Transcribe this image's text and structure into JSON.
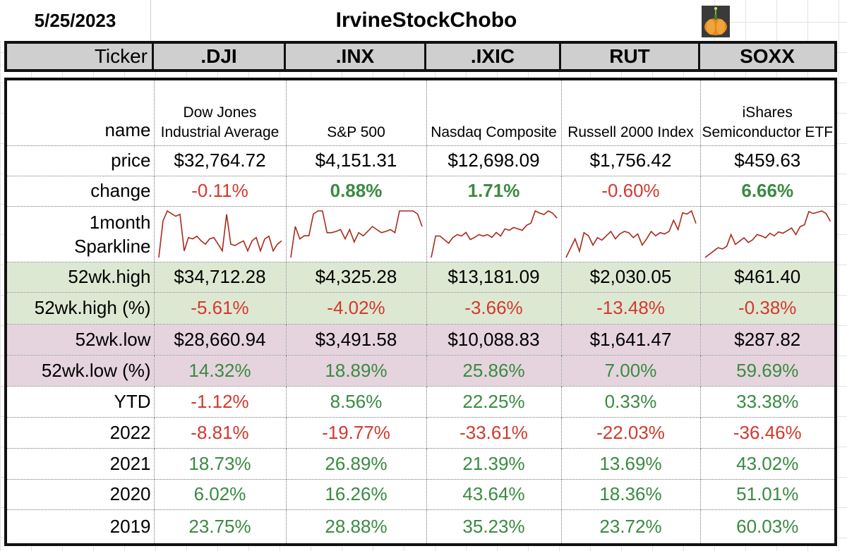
{
  "date": "5/25/2023",
  "title": "IrvineStockChobo",
  "header": {
    "ticker_label": "Ticker",
    "tickers": [
      ".DJI",
      ".INX",
      ".IXIC",
      "RUT",
      "SOXX"
    ]
  },
  "rows": {
    "name": {
      "label": "name",
      "values": [
        "Dow Jones Industrial Average",
        "S&P 500",
        "Nasdaq Composite",
        "Russell 2000 Index",
        "iShares Semiconductor ETF"
      ]
    },
    "price": {
      "label": "price",
      "values": [
        "$32,764.72",
        "$4,151.31",
        "$12,698.09",
        "$1,756.42",
        "$459.63"
      ]
    },
    "change": {
      "label": "change",
      "values": [
        "-0.11%",
        "0.88%",
        "1.71%",
        "-0.60%",
        "6.66%"
      ]
    },
    "sparkline": {
      "label_line1": "1month",
      "label_line2": "Sparkline",
      "series": [
        [
          30,
          85,
          100,
          96,
          92,
          95,
          40,
          60,
          58,
          62,
          55,
          50,
          58,
          60,
          50,
          40,
          95,
          50,
          48,
          52,
          55,
          40,
          55,
          60,
          40,
          58,
          62,
          40,
          50,
          55
        ],
        [
          20,
          70,
          50,
          55,
          55,
          90,
          95,
          95,
          60,
          60,
          62,
          65,
          50,
          65,
          45,
          60,
          55,
          62,
          70,
          65,
          60,
          62,
          65,
          60,
          95,
          95,
          95,
          95,
          90,
          70
        ],
        [
          30,
          60,
          60,
          55,
          50,
          58,
          62,
          60,
          65,
          55,
          58,
          62,
          60,
          62,
          58,
          65,
          60,
          70,
          68,
          72,
          70,
          68,
          75,
          78,
          95,
          92,
          90,
          95,
          92,
          85
        ],
        [
          20,
          35,
          50,
          30,
          60,
          55,
          40,
          52,
          48,
          55,
          62,
          50,
          58,
          62,
          60,
          52,
          58,
          40,
          50,
          62,
          55,
          60,
          58,
          62,
          80,
          65,
          92,
          90,
          95,
          75
        ],
        [
          25,
          30,
          35,
          40,
          38,
          42,
          60,
          45,
          50,
          55,
          48,
          52,
          60,
          58,
          55,
          62,
          58,
          64,
          62,
          66,
          70,
          60,
          72,
          75,
          95,
          92,
          94,
          96,
          92,
          80
        ]
      ],
      "color": "#a8291c"
    },
    "high52": {
      "label": "52wk.high",
      "values": [
        "$34,712.28",
        "$4,325.28",
        "$13,181.09",
        "$2,030.05",
        "$461.40"
      ]
    },
    "high52pct": {
      "label": "52wk.high (%)",
      "values": [
        "-5.61%",
        "-4.02%",
        "-3.66%",
        "-13.48%",
        "-0.38%"
      ]
    },
    "low52": {
      "label": "52wk.low",
      "values": [
        "$28,660.94",
        "$3,491.58",
        "$10,088.83",
        "$1,641.47",
        "$287.82"
      ]
    },
    "low52pct": {
      "label": "52wk.low (%)",
      "values": [
        "14.32%",
        "18.89%",
        "25.86%",
        "7.00%",
        "59.69%"
      ]
    },
    "ytd": {
      "label": "YTD",
      "values": [
        "-1.12%",
        "8.56%",
        "22.25%",
        "0.33%",
        "33.38%"
      ]
    },
    "y2022": {
      "label": "2022",
      "values": [
        "-8.81%",
        "-19.77%",
        "-33.61%",
        "-22.03%",
        "-36.46%"
      ]
    },
    "y2021": {
      "label": "2021",
      "values": [
        "18.73%",
        "26.89%",
        "21.39%",
        "13.69%",
        "43.02%"
      ]
    },
    "y2020": {
      "label": "2020",
      "values": [
        "6.02%",
        "16.26%",
        "43.64%",
        "18.36%",
        "51.01%"
      ]
    },
    "y2019": {
      "label": "2019",
      "values": [
        "23.75%",
        "28.88%",
        "35.23%",
        "23.72%",
        "60.03%"
      ]
    }
  },
  "colors": {
    "negative": "#d2392e",
    "positive": "#3a8a42",
    "header_bg": "#cfcfcf",
    "high_band": "#dde8d3",
    "low_band": "#e5d4dd"
  }
}
